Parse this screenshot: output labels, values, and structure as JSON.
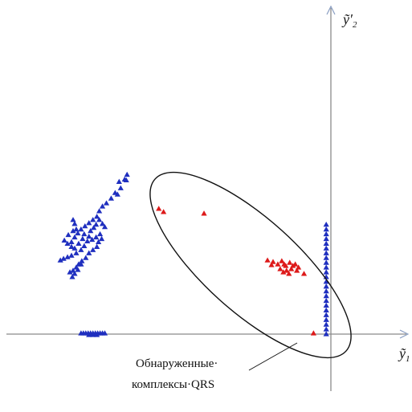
{
  "chart_data": {
    "type": "scatter",
    "xlabel": {
      "text": "ỹ",
      "sub": "1"
    },
    "ylabel": {
      "text": "ỹ′",
      "sub": "2"
    },
    "xlim": [
      -404,
      100
    ],
    "ylim": [
      -70,
      413
    ],
    "grid": false,
    "legend": "none",
    "annotation": [
      "Обнаруженные·",
      "комплексы·QRS"
    ],
    "series": [
      {
        "color": "#1f2fbf",
        "marker": "triangle",
        "values": [
          [
            -262,
            194
          ],
          [
            -260,
            186
          ],
          [
            -278,
            167
          ],
          [
            -283,
            163
          ],
          [
            -287,
            157
          ],
          [
            -290,
            150
          ],
          [
            -295,
            146
          ],
          [
            -300,
            142
          ],
          [
            -305,
            138
          ],
          [
            -310,
            134
          ],
          [
            -314,
            129
          ],
          [
            -318,
            124
          ],
          [
            -300,
            125
          ],
          [
            -302,
            119
          ],
          [
            -306,
            113
          ],
          [
            -310,
            108
          ],
          [
            -316,
            104
          ],
          [
            -322,
            101
          ],
          [
            -327,
            99
          ],
          [
            -332,
            97
          ],
          [
            -336,
            95
          ],
          [
            -331,
            120
          ],
          [
            -327,
            116
          ],
          [
            -322,
            112
          ],
          [
            -318,
            110
          ],
          [
            -313,
            116
          ],
          [
            -308,
            122
          ],
          [
            -306,
            128
          ],
          [
            -298,
            132
          ],
          [
            -294,
            136
          ],
          [
            -291,
            140
          ],
          [
            -287,
            146
          ],
          [
            -283,
            141
          ],
          [
            -280,
            137
          ],
          [
            -286,
            128
          ],
          [
            -291,
            124
          ],
          [
            -296,
            121
          ],
          [
            -300,
            104
          ],
          [
            -304,
            98
          ],
          [
            -309,
            94
          ],
          [
            -313,
            90
          ],
          [
            -316,
            86
          ],
          [
            -320,
            82
          ],
          [
            -324,
            80
          ],
          [
            -321,
            74
          ],
          [
            -318,
            78
          ],
          [
            -314,
            83
          ],
          [
            -310,
            90
          ],
          [
            -320,
            132
          ],
          [
            -326,
            127
          ],
          [
            -320,
            146
          ],
          [
            -318,
            141
          ],
          [
            -316,
            134
          ],
          [
            -322,
            118
          ],
          [
            -295,
            108
          ],
          [
            -290,
            112
          ],
          [
            -288,
            118
          ],
          [
            -284,
            122
          ],
          [
            -272,
            173
          ],
          [
            -267,
            180
          ],
          [
            -264,
            178
          ],
          [
            -255,
            197
          ],
          [
            -252,
            203
          ],
          [
            -253,
            196
          ],
          [
            -310,
            3
          ],
          [
            -307,
            3
          ],
          [
            -304,
            3
          ],
          [
            -301,
            3
          ],
          [
            -298,
            3
          ],
          [
            -295,
            3
          ],
          [
            -292,
            3
          ],
          [
            -289,
            3
          ],
          [
            -286,
            3
          ],
          [
            -283,
            3
          ],
          [
            -280,
            3
          ],
          [
            -295,
            1
          ],
          [
            -300,
            1
          ],
          [
            -290,
            1
          ],
          [
            -1,
            140
          ],
          [
            -1,
            134
          ],
          [
            -1,
            128
          ],
          [
            -1,
            122
          ],
          [
            -1,
            116
          ],
          [
            -1,
            110
          ],
          [
            -1,
            104
          ],
          [
            -1,
            98
          ],
          [
            -1,
            92
          ],
          [
            -1,
            86
          ],
          [
            -1,
            80
          ],
          [
            -1,
            74
          ],
          [
            -1,
            68
          ],
          [
            -1,
            62
          ],
          [
            -1,
            56
          ],
          [
            -1,
            50
          ],
          [
            -1,
            44
          ],
          [
            -1,
            38
          ],
          [
            -1,
            32
          ],
          [
            -1,
            26
          ],
          [
            -1,
            20
          ],
          [
            -1,
            14
          ],
          [
            -1,
            8
          ],
          [
            -1,
            2
          ]
        ]
      },
      {
        "color": "#dd1a1a",
        "marker": "triangle",
        "values": [
          [
            -212,
            160
          ],
          [
            -206,
            156
          ],
          [
            -155,
            154
          ],
          [
            -75,
            95
          ],
          [
            -68,
            93
          ],
          [
            -62,
            90
          ],
          [
            -57,
            94
          ],
          [
            -54,
            90
          ],
          [
            -52,
            88
          ],
          [
            -47,
            92
          ],
          [
            -43,
            88
          ],
          [
            -40,
            90
          ],
          [
            -36,
            86
          ],
          [
            -70,
            89
          ],
          [
            -59,
            84
          ],
          [
            -51,
            82
          ],
          [
            -45,
            84
          ],
          [
            -38,
            82
          ],
          [
            -29,
            78
          ],
          [
            -55,
            80
          ],
          [
            -48,
            78
          ],
          [
            -17,
            3
          ]
        ]
      }
    ]
  }
}
